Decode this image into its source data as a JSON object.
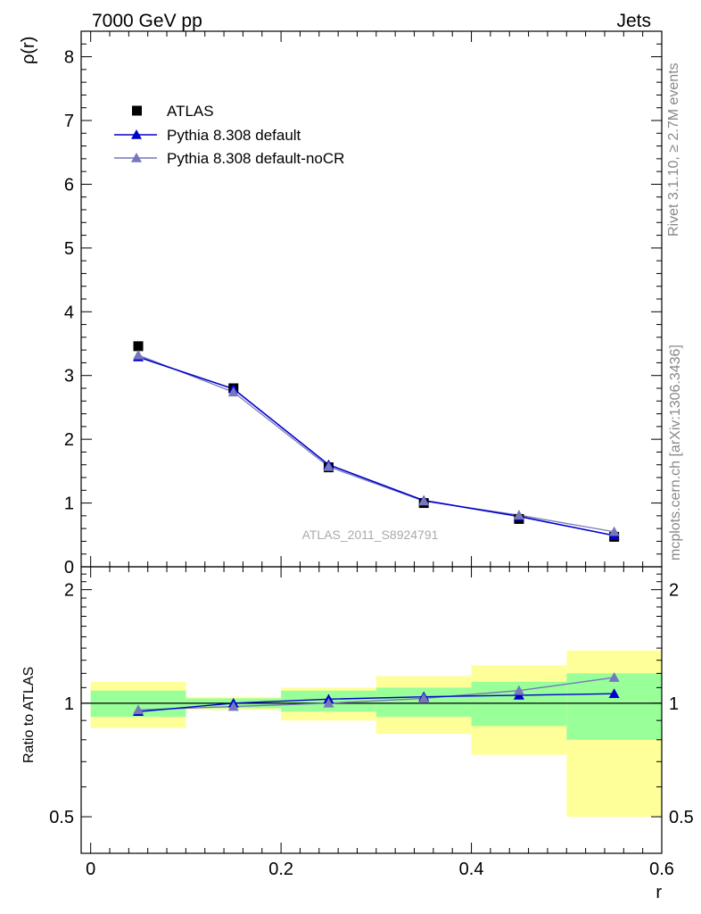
{
  "header": {
    "left": "7000 GeV pp",
    "right": "Jets"
  },
  "side_labels": {
    "rivet": "Rivet 3.1.10, ≥ 2.7M events",
    "mcplots": "mcplots.cern.ch [arXiv:1306.3436]"
  },
  "analysis_label": "ATLAS_2011_S8924791",
  "colors": {
    "atlas": "#000000",
    "pythia_default": "#0000cc",
    "pythia_nocr": "#7777bb",
    "band_inner": "#99ff99",
    "band_outer": "#ffff99"
  },
  "chart_data": [
    {
      "type": "scatter",
      "panel": "main",
      "xlabel": "",
      "ylabel": "ρ(r)",
      "xlim": [
        -0.01,
        0.6
      ],
      "ylim": [
        0,
        8.4
      ],
      "yticks": [
        0,
        1,
        2,
        3,
        4,
        5,
        6,
        7,
        8
      ],
      "legend_position": "top-left",
      "x": [
        0.05,
        0.15,
        0.25,
        0.35,
        0.45,
        0.55
      ],
      "series": [
        {
          "name": "ATLAS",
          "marker": "square",
          "values": [
            3.46,
            2.8,
            1.56,
            1.0,
            0.75,
            0.47
          ]
        },
        {
          "name": "Pythia 8.308 default",
          "marker": "triangle",
          "values": [
            3.29,
            2.79,
            1.6,
            1.04,
            0.79,
            0.49
          ]
        },
        {
          "name": "Pythia 8.308 default-noCR",
          "marker": "triangle",
          "values": [
            3.32,
            2.74,
            1.57,
            1.03,
            0.81,
            0.55
          ]
        }
      ]
    },
    {
      "type": "line",
      "panel": "ratio",
      "xlabel": "r",
      "ylabel": "Ratio to ATLAS",
      "xlim": [
        -0.01,
        0.6
      ],
      "ylim": [
        0.4,
        2.3
      ],
      "yscale": "log",
      "yticks": [
        0.5,
        1,
        2
      ],
      "xticks": [
        0,
        0.2,
        0.4,
        0.6
      ],
      "x": [
        0.05,
        0.15,
        0.25,
        0.35,
        0.45,
        0.55
      ],
      "bins": [
        [
          0.0,
          0.1
        ],
        [
          0.1,
          0.2
        ],
        [
          0.2,
          0.3
        ],
        [
          0.3,
          0.4
        ],
        [
          0.4,
          0.5
        ],
        [
          0.5,
          0.6
        ]
      ],
      "band_inner": [
        [
          0.92,
          1.08
        ],
        [
          0.97,
          1.03
        ],
        [
          0.95,
          1.08
        ],
        [
          0.92,
          1.1
        ],
        [
          0.87,
          1.14
        ],
        [
          0.8,
          1.2
        ]
      ],
      "band_outer": [
        [
          0.86,
          1.14
        ],
        [
          0.96,
          1.04
        ],
        [
          0.9,
          1.1
        ],
        [
          0.83,
          1.18
        ],
        [
          0.73,
          1.26
        ],
        [
          0.5,
          1.38
        ]
      ],
      "series": [
        {
          "name": "Pythia 8.308 default",
          "values": [
            0.95,
            1.0,
            1.025,
            1.04,
            1.05,
            1.06
          ]
        },
        {
          "name": "Pythia 8.308 default-noCR",
          "values": [
            0.96,
            0.98,
            1.0,
            1.03,
            1.08,
            1.17
          ]
        }
      ]
    }
  ]
}
